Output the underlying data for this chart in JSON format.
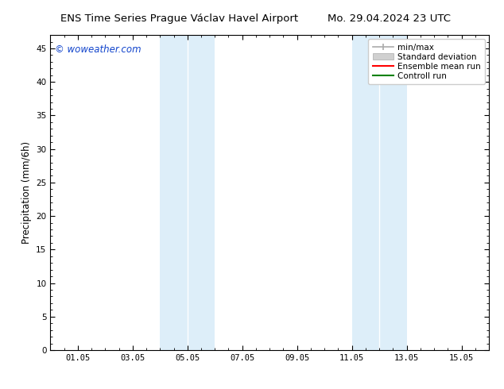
{
  "title_left": "ENS Time Series Prague Václav Havel Airport",
  "title_right": "Mo. 29.04.2024 23 UTC",
  "ylabel": "Precipitation (mm/6h)",
  "xlabel": "",
  "xmin": 0.0,
  "xmax": 16.0,
  "ymin": 0,
  "ymax": 47,
  "yticks": [
    0,
    5,
    10,
    15,
    20,
    25,
    30,
    35,
    40,
    45
  ],
  "xtick_labels": [
    "01.05",
    "03.05",
    "05.05",
    "07.05",
    "09.05",
    "11.05",
    "13.05",
    "15.05"
  ],
  "xtick_positions": [
    1,
    3,
    5,
    7,
    9,
    11,
    13,
    15
  ],
  "band1_x0": 4.0,
  "band1_x1": 6.0,
  "band2_x0": 11.0,
  "band2_x1": 13.0,
  "band_color": "#ddeef9",
  "band_separator_color": "#ffffff",
  "legend_labels": [
    "min/max",
    "Standard deviation",
    "Ensemble mean run",
    "Controll run"
  ],
  "legend_colors": [
    "#999999",
    "#cccccc",
    "#ff0000",
    "#008000"
  ],
  "watermark": "© woweather.com",
  "watermark_color": "#1144cc",
  "bg_color": "#ffffff",
  "plot_bg_color": "#ffffff",
  "spine_color": "#000000",
  "font_size_title": 9.5,
  "font_size_axis": 8.5,
  "font_size_tick": 7.5,
  "font_size_watermark": 8.5,
  "font_size_legend": 7.5
}
